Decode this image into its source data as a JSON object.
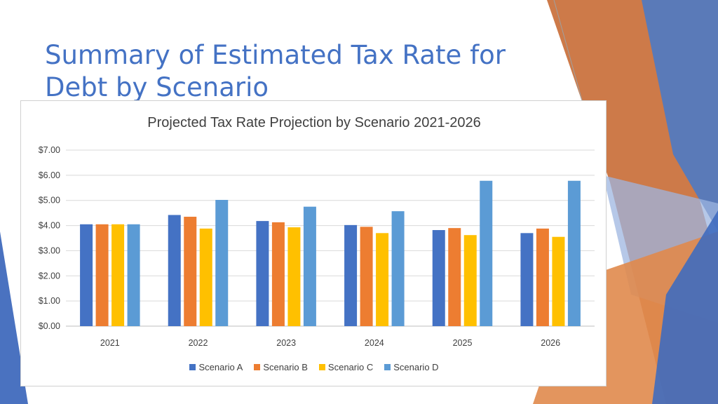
{
  "slide": {
    "title": "Summary of Estimated Tax Rate for Debt by Scenario"
  },
  "colors": {
    "title": "#4472c4",
    "accent_orange": "#e07b39",
    "accent_blue": "#4472c4"
  },
  "chart_data": {
    "type": "bar",
    "title": "Projected Tax Rate Projection by Scenario 2021-2026",
    "xlabel": "",
    "ylabel": "",
    "categories": [
      "2021",
      "2022",
      "2023",
      "2024",
      "2025",
      "2026"
    ],
    "ylim": [
      0,
      7
    ],
    "yticks": [
      "$0.00",
      "$1.00",
      "$2.00",
      "$3.00",
      "$4.00",
      "$5.00",
      "$6.00",
      "$7.00"
    ],
    "grid": true,
    "legend_position": "bottom",
    "series": [
      {
        "name": "Scenario A",
        "color": "#4472c4",
        "values": [
          4.05,
          4.42,
          4.18,
          4.02,
          3.82,
          3.7
        ]
      },
      {
        "name": "Scenario B",
        "color": "#ed7d31",
        "values": [
          4.05,
          4.35,
          4.13,
          3.95,
          3.9,
          3.88
        ]
      },
      {
        "name": "Scenario C",
        "color": "#ffc000",
        "values": [
          4.05,
          3.88,
          3.93,
          3.7,
          3.62,
          3.55
        ]
      },
      {
        "name": "Scenario D",
        "color": "#5b9bd5",
        "values": [
          4.05,
          5.02,
          4.75,
          4.57,
          5.78,
          5.78
        ]
      }
    ]
  }
}
